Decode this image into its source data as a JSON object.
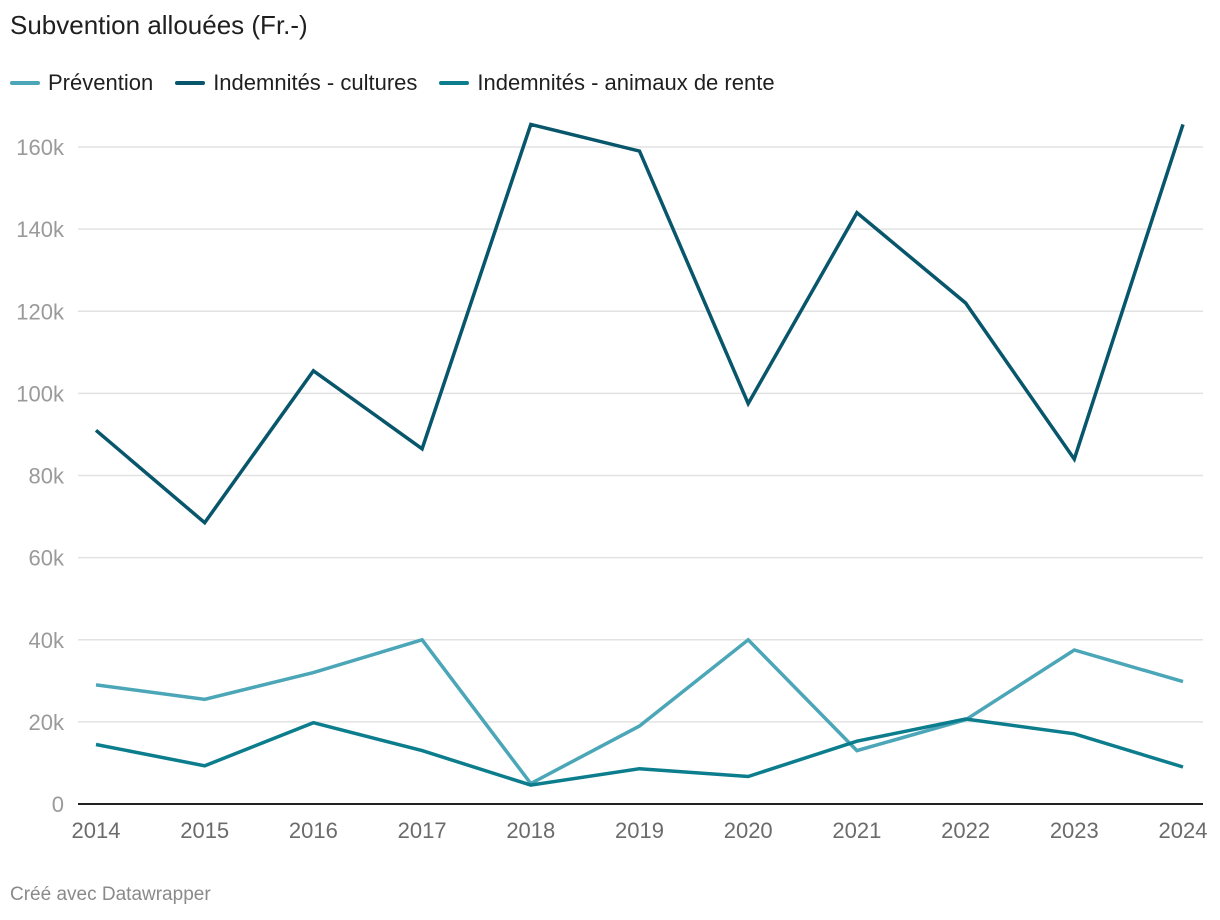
{
  "chart_data": {
    "type": "line",
    "title": "Subvention allouées (Fr.-)",
    "x": [
      "2014",
      "2015",
      "2016",
      "2017",
      "2018",
      "2019",
      "2020",
      "2021",
      "2022",
      "2023",
      "2024"
    ],
    "ylim": [
      0,
      170000
    ],
    "yticks": [
      0,
      20000,
      40000,
      60000,
      80000,
      100000,
      120000,
      140000,
      160000
    ],
    "ytick_labels": [
      "0",
      "20k",
      "40k",
      "60k",
      "80k",
      "100k",
      "120k",
      "140k",
      "160k"
    ],
    "grid": true,
    "legend_position": "top-left",
    "series": [
      {
        "name": "Prévention",
        "color": "#4ba6b8",
        "values": [
          29000,
          25500,
          32000,
          40000,
          5000,
          19000,
          40000,
          13000,
          20500,
          37500,
          29800
        ]
      },
      {
        "name": "Indemnités - cultures",
        "color": "#08566b",
        "values": [
          91000,
          68500,
          105500,
          86500,
          165500,
          159000,
          97500,
          144000,
          122000,
          84000,
          165500
        ]
      },
      {
        "name": "Indemnités - animaux de rente",
        "color": "#0b7d8d",
        "values": [
          14500,
          9300,
          19800,
          13000,
          4600,
          8600,
          6700,
          15300,
          20700,
          17100,
          9000
        ]
      }
    ]
  },
  "footer": "Créé avec Datawrapper"
}
